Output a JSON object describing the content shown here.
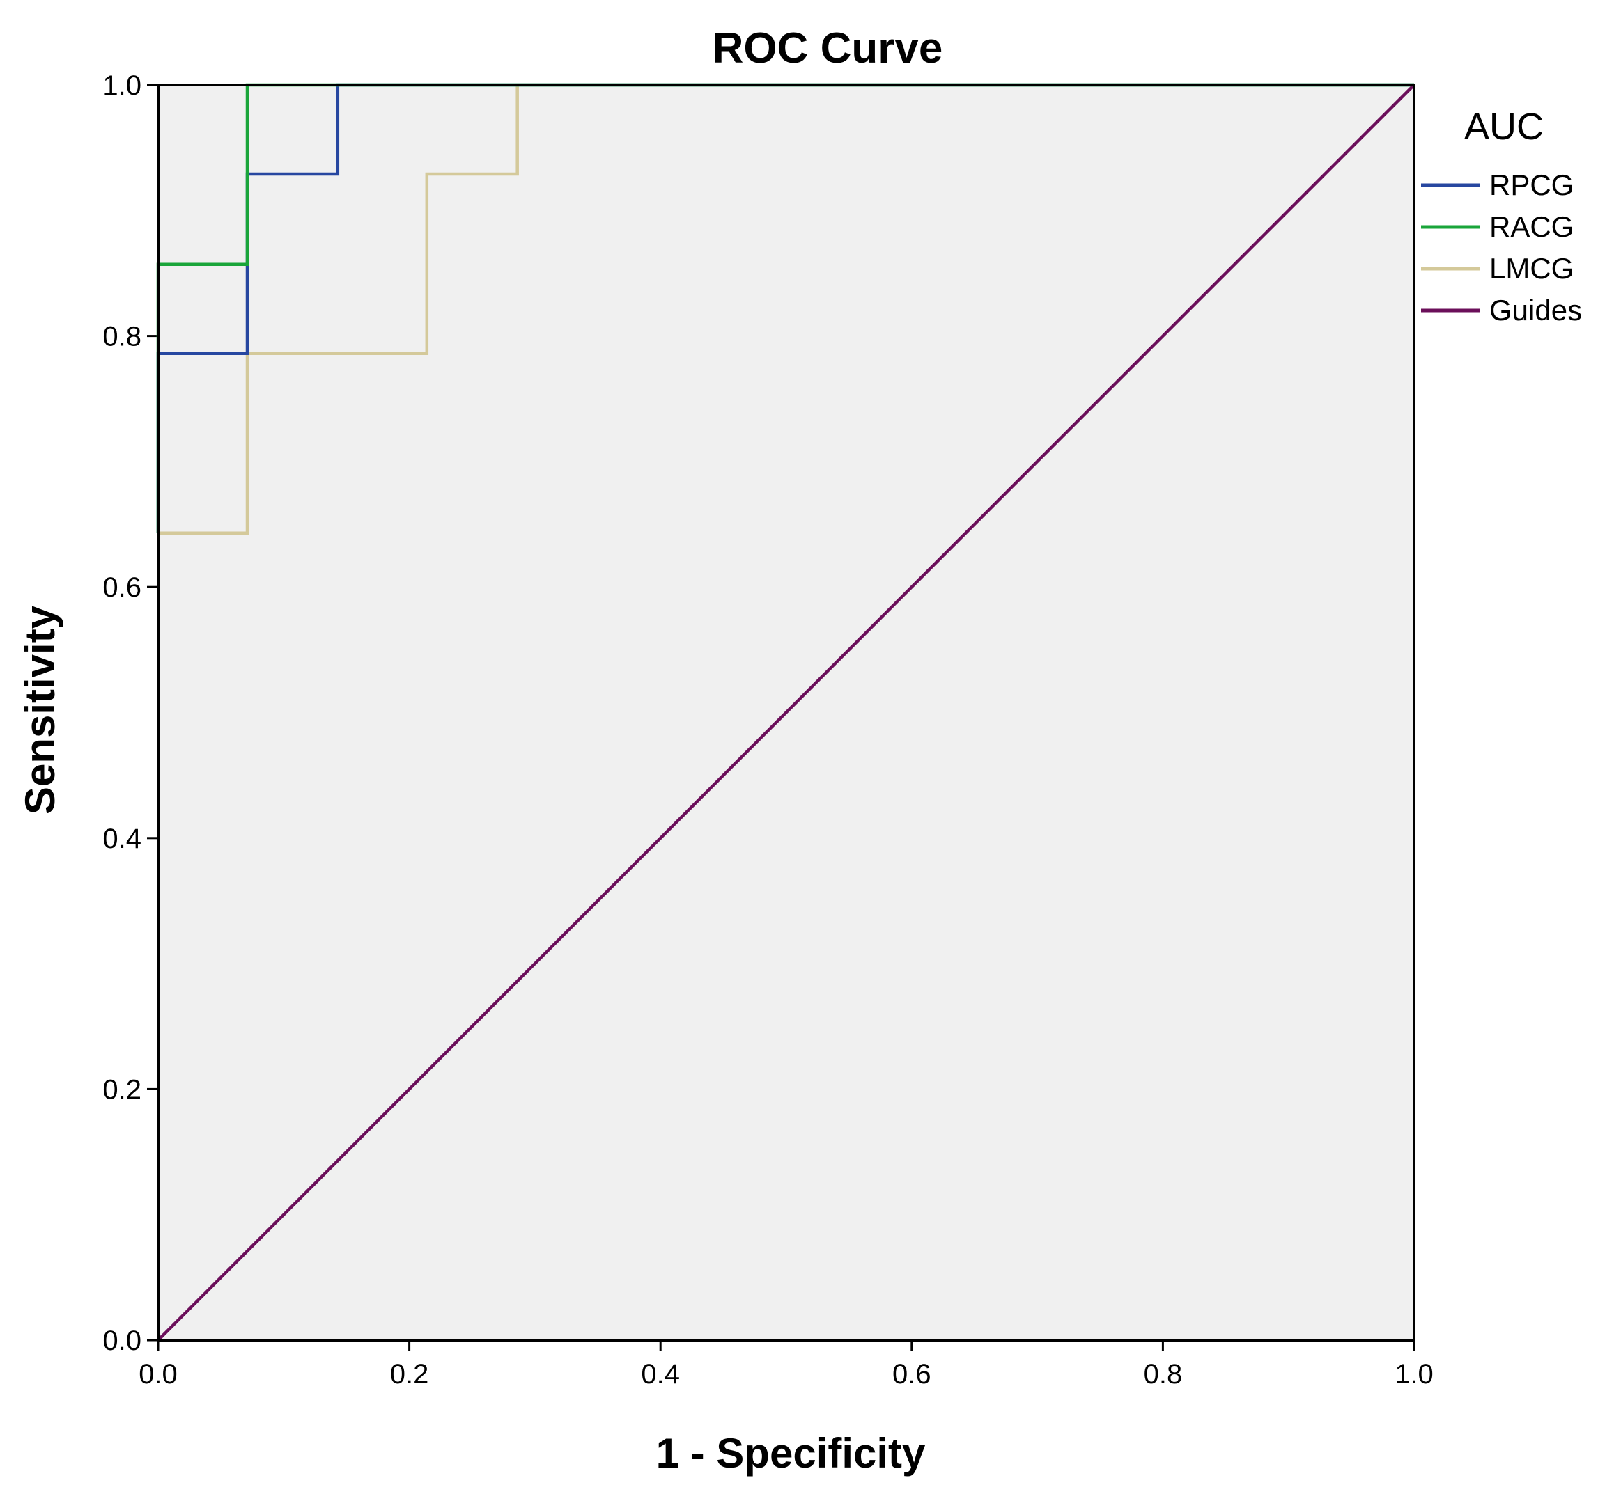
{
  "chart_data": {
    "type": "line",
    "title": "ROC Curve",
    "xlabel": "1 - Specificity",
    "ylabel": "Sensitivity",
    "xlim": [
      0,
      1
    ],
    "ylim": [
      0,
      1
    ],
    "x_ticks": [
      "0.0",
      "0.2",
      "0.4",
      "0.6",
      "0.8",
      "1.0"
    ],
    "y_ticks": [
      "0.0",
      "0.2",
      "0.4",
      "0.6",
      "0.8",
      "1.0"
    ],
    "grid": false,
    "plot_background": "#f0f0f0",
    "legend": {
      "title": "AUC",
      "placement": "right-top"
    },
    "series": [
      {
        "name": "RPCG",
        "color": "#2747a0",
        "x": [
          0,
          0,
          0.071,
          0.071,
          0.143,
          0.143,
          1.0
        ],
        "y": [
          0.643,
          0.786,
          0.786,
          0.929,
          0.929,
          1.0,
          1.0
        ]
      },
      {
        "name": "RACG",
        "color": "#1aa53a",
        "x": [
          0,
          0,
          0.071,
          0.071,
          1.0
        ],
        "y": [
          0.643,
          0.857,
          0.857,
          1.0,
          1.0
        ]
      },
      {
        "name": "LMCG",
        "color": "#d4c99a",
        "x": [
          0,
          0,
          0.071,
          0.071,
          0.214,
          0.214,
          0.286,
          0.286,
          1.0
        ],
        "y": [
          0.643,
          0.643,
          0.643,
          0.786,
          0.786,
          0.929,
          0.929,
          1.0,
          1.0
        ]
      },
      {
        "name": "Guides",
        "color": "#6b0f5a",
        "x": [
          0,
          1
        ],
        "y": [
          0,
          1
        ]
      }
    ]
  }
}
